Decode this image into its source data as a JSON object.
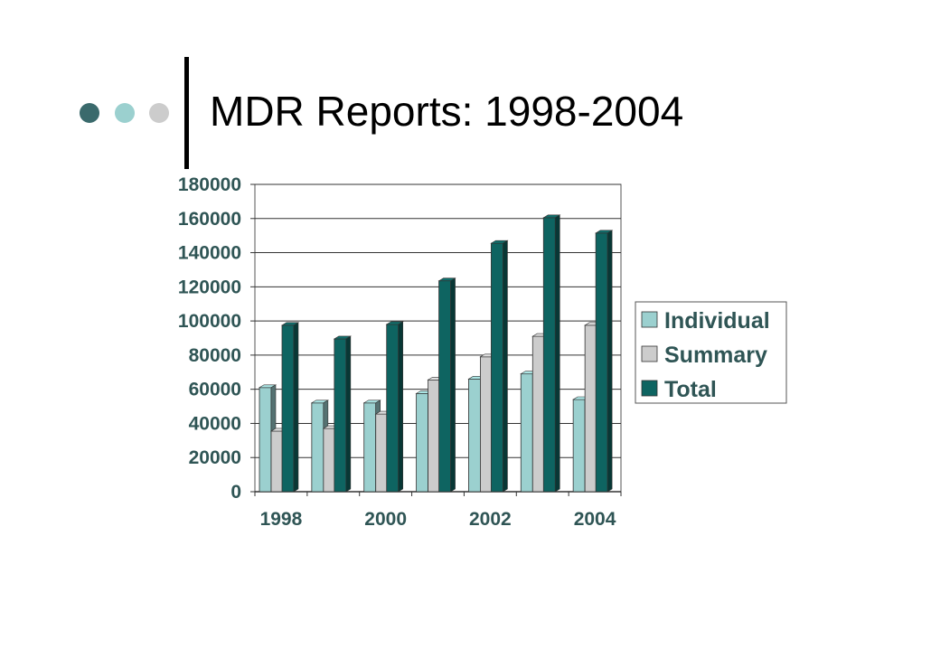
{
  "header": {
    "title": "MDR Reports: 1998-2004",
    "dot_colors": [
      "#3a6a6c",
      "#9bd0cf",
      "#cccccc"
    ]
  },
  "chart_data": {
    "type": "bar",
    "title": "MDR Reports: 1998-2004",
    "categories": [
      "1998",
      "1999",
      "2000",
      "2001",
      "2002",
      "2003",
      "2004"
    ],
    "x_tick_labels": [
      "1998",
      "2000",
      "2002",
      "2004"
    ],
    "y_tick_labels": [
      "0",
      "20000",
      "40000",
      "60000",
      "80000",
      "100000",
      "120000",
      "140000",
      "160000",
      "180000"
    ],
    "ylim": [
      0,
      180000
    ],
    "grid": true,
    "legend_position": "right",
    "series": [
      {
        "name": "Individual",
        "color": "#9bd0cf",
        "values": [
          61000,
          52000,
          52000,
          57500,
          66000,
          69000,
          54000
        ]
      },
      {
        "name": "Summary",
        "color": "#cccccc",
        "values": [
          35500,
          37000,
          45500,
          65500,
          79000,
          91000,
          97500
        ]
      },
      {
        "name": "Total",
        "color": "#0e6461",
        "values": [
          97500,
          89500,
          98000,
          123500,
          145500,
          160500,
          151500
        ]
      }
    ]
  }
}
